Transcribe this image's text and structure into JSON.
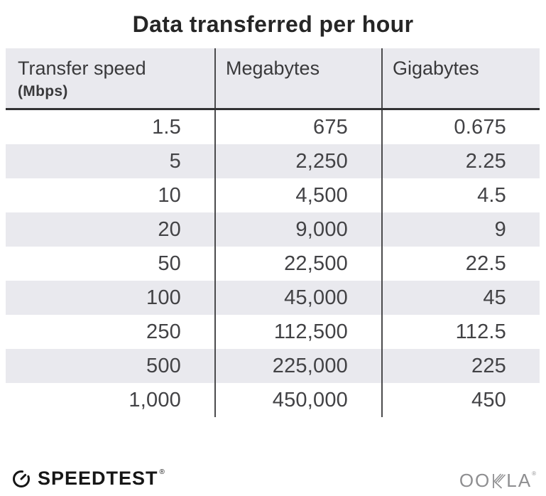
{
  "title": "Data transferred per hour",
  "table": {
    "columns": [
      {
        "label": "Transfer speed",
        "sublabel": "(Mbps)"
      },
      {
        "label": "Megabytes"
      },
      {
        "label": "Gigabytes"
      }
    ],
    "rows": [
      [
        "1.5",
        "675",
        "0.675"
      ],
      [
        "5",
        "2,250",
        "2.25"
      ],
      [
        "10",
        "4,500",
        "4.5"
      ],
      [
        "20",
        "9,000",
        "9"
      ],
      [
        "50",
        "22,500",
        "22.5"
      ],
      [
        "100",
        "45,000",
        "45"
      ],
      [
        "250",
        "112,500",
        "112.5"
      ],
      [
        "500",
        "225,000",
        "225"
      ],
      [
        "1,000",
        "450,000",
        "450"
      ]
    ]
  },
  "chart_data": {
    "type": "table",
    "title": "Data transferred per hour",
    "columns": [
      "Transfer speed (Mbps)",
      "Megabytes",
      "Gigabytes"
    ],
    "rows": [
      [
        1.5,
        675,
        0.675
      ],
      [
        5,
        2250,
        2.25
      ],
      [
        10,
        4500,
        4.5
      ],
      [
        20,
        9000,
        9
      ],
      [
        50,
        22500,
        22.5
      ],
      [
        100,
        45000,
        45
      ],
      [
        250,
        112500,
        112.5
      ],
      [
        500,
        225000,
        225
      ],
      [
        1000,
        450000,
        450
      ]
    ]
  },
  "footer": {
    "speedtest_label": "SPEEDTEST",
    "speedtest_trademark": "®",
    "ookla_left": "OO",
    "ookla_right": "LA",
    "ookla_trademark": "®"
  },
  "colors": {
    "stripe": "#e9e9ee",
    "divider": "#4b4b4d",
    "header-underline": "#323234",
    "ink": "#424245",
    "title-ink": "#262626",
    "ookla-gray": "#8e8e90",
    "brand-black": "#161616"
  }
}
